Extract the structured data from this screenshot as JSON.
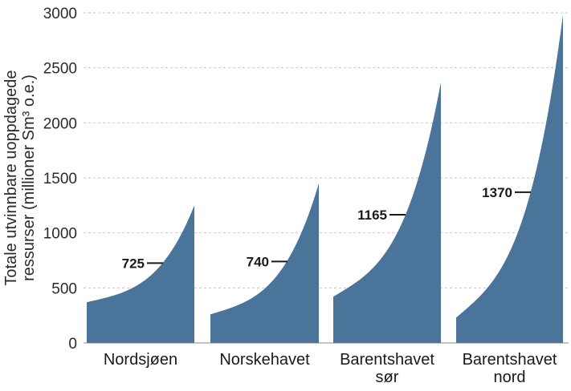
{
  "chart_data": {
    "type": "area",
    "ylabel_lines": [
      "Totale utvinnbare uoppdagede",
      "ressurser (millioner Sm³ o.e.)"
    ],
    "ylim": [
      0,
      3000
    ],
    "yticks": [
      0,
      500,
      1000,
      1500,
      2000,
      2500,
      3000
    ],
    "grid": true,
    "series_color": "#4a7499",
    "categories": [
      {
        "lines": [
          "Nordsjøen"
        ],
        "low": 370,
        "expected": 725,
        "high": 1250
      },
      {
        "lines": [
          "Norskehavet"
        ],
        "low": 260,
        "expected": 740,
        "high": 1450
      },
      {
        "lines": [
          "Barentshavet",
          "sør"
        ],
        "low": 420,
        "expected": 1165,
        "high": 2370
      },
      {
        "lines": [
          "Barentshavet",
          "nord"
        ],
        "low": 230,
        "expected": 1370,
        "high": 2980
      }
    ]
  }
}
